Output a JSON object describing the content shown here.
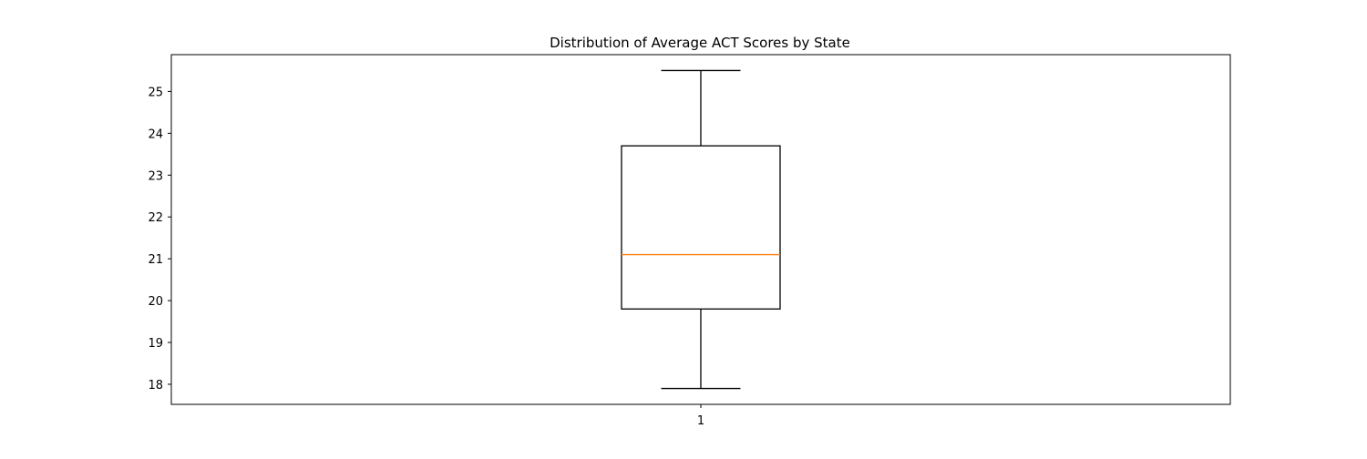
{
  "chart_data": {
    "type": "box",
    "title": "Distribution of Average ACT Scores by State",
    "xlabel": "",
    "ylabel": "",
    "categories": [
      "1"
    ],
    "boxes": [
      {
        "category": "1",
        "whisker_low": 17.9,
        "q1": 19.8,
        "median": 21.1,
        "q3": 23.7,
        "whisker_high": 25.5
      }
    ],
    "ylim": [
      17.52,
      25.88
    ],
    "yticks": [
      18,
      19,
      20,
      21,
      22,
      23,
      24,
      25
    ],
    "grid": false,
    "colors": {
      "box": "#000000",
      "median": "#ff7f0e",
      "axes": "#000000"
    }
  }
}
